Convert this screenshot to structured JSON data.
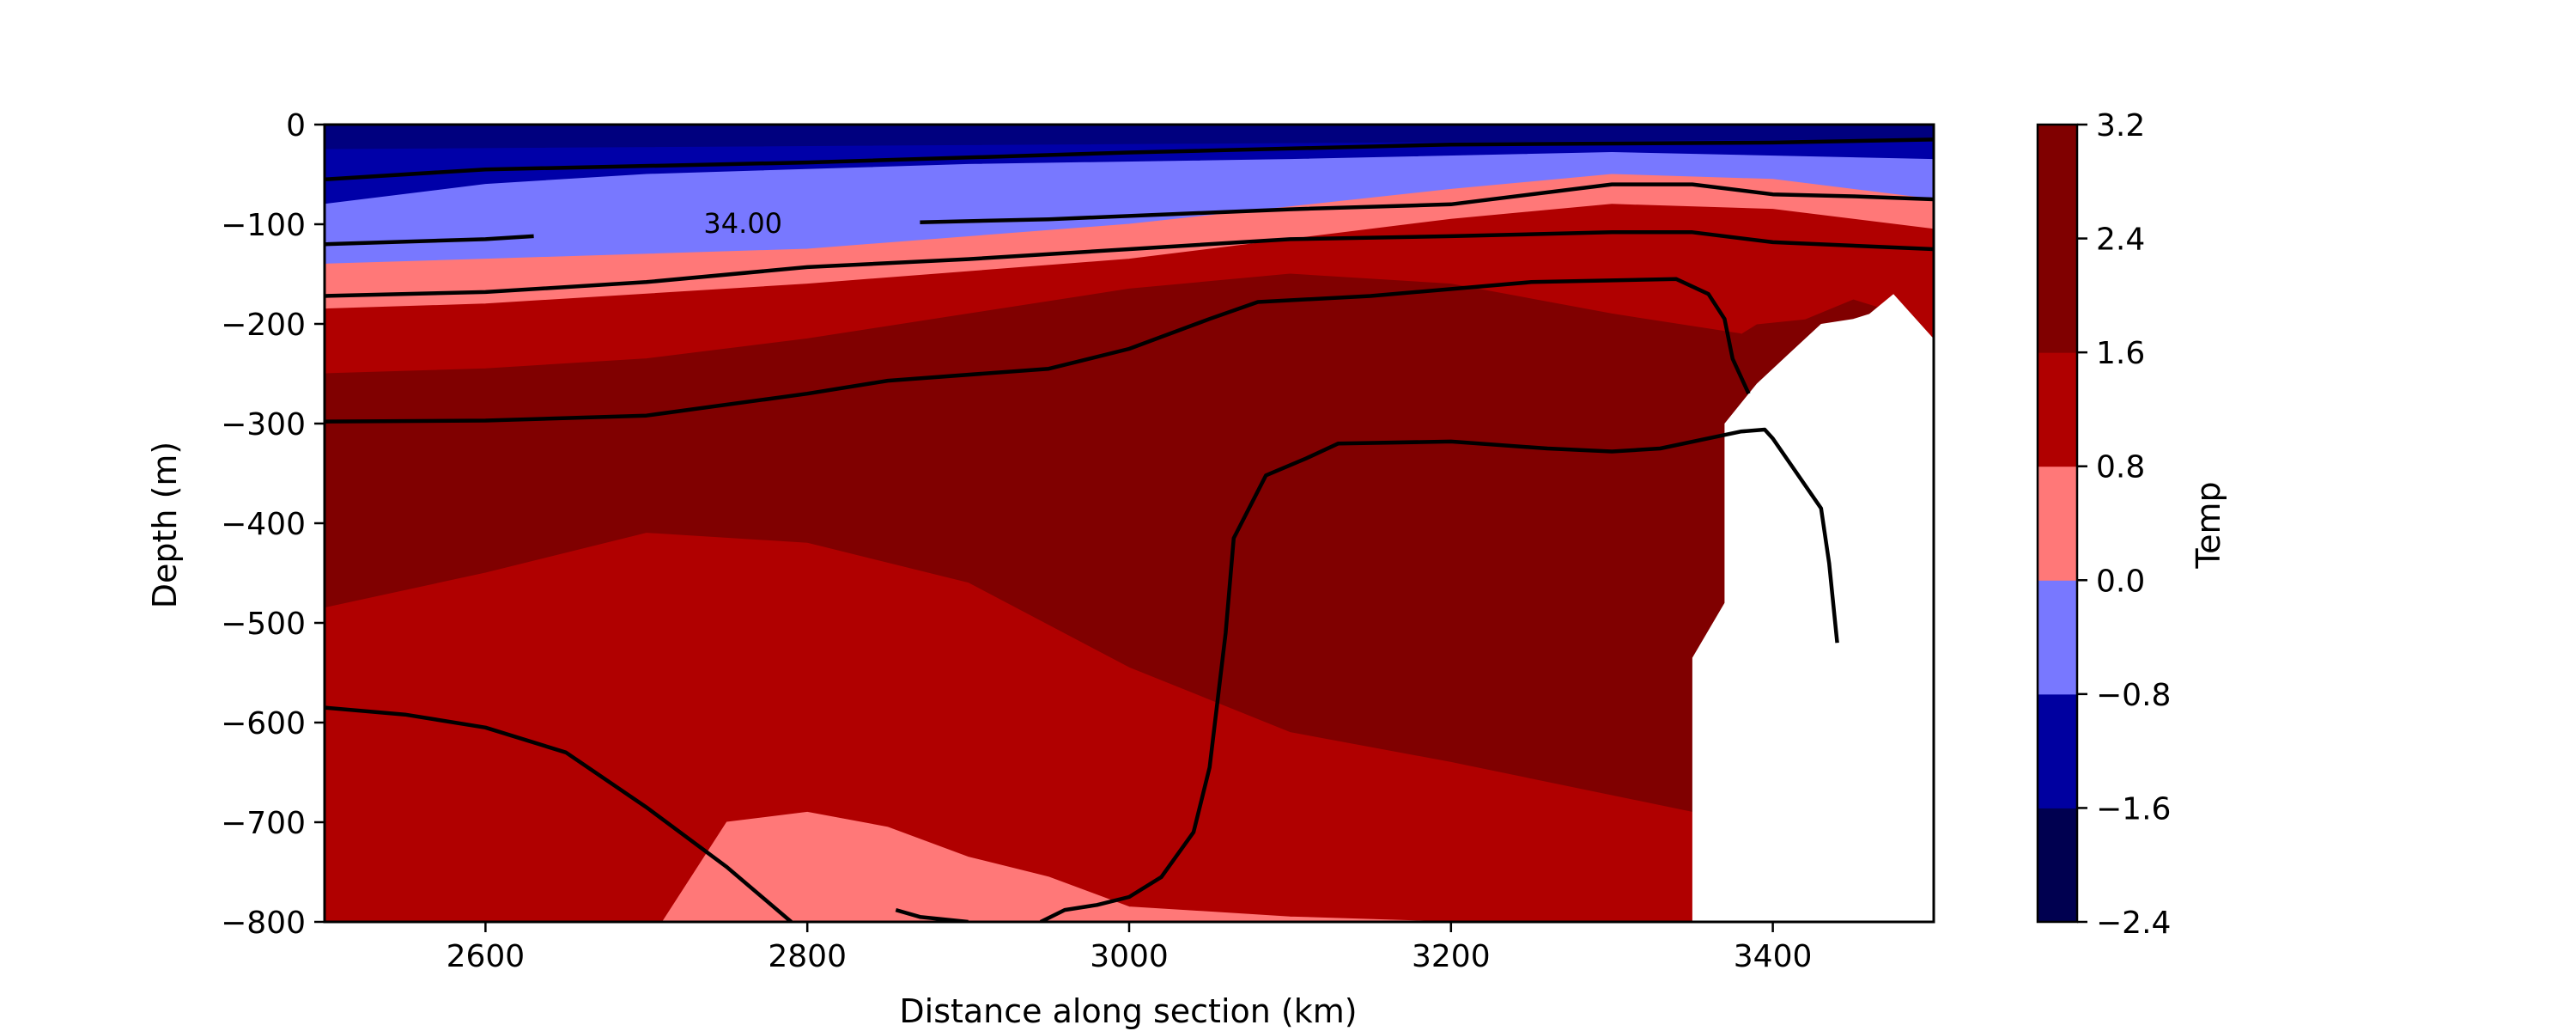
{
  "chart_data": {
    "type": "filled-contour",
    "xlabel": "Distance along section (km)",
    "ylabel": "Depth (m)",
    "xlim": [
      2500,
      3500
    ],
    "ylim": [
      -800,
      0
    ],
    "x_ticks": [
      2600,
      2800,
      3000,
      3200,
      3400
    ],
    "y_ticks": [
      0,
      -100,
      -200,
      -300,
      -400,
      -500,
      -600,
      -700,
      -800
    ],
    "colorbar": {
      "label": "Temp",
      "levels": [
        -2.4,
        -1.6,
        -0.8,
        0.0,
        0.8,
        1.6,
        2.4,
        3.2
      ],
      "colors": [
        "#000050",
        "#0000a0",
        "#7878ff",
        "#ff7878",
        "#b00000",
        "#800000",
        "#800000"
      ]
    },
    "contour_label": "34.00",
    "colors": {
      "band_lt_-0.8": "#00007f",
      "band_-0.8_0.0": "#0000a8",
      "band_0.0_0.8": "#7878ff",
      "band_0.8_1.6": "#ff7878",
      "band_1.6_2.4": "#b00000",
      "band_gt_2.4": "#800000",
      "contour_line": "#000000",
      "land_mask": "#ffffff"
    },
    "temperature_bands": [
      {
        "name": "surface_dark_blue",
        "color_key": "band_lt_-0.8",
        "points": [
          [
            2500,
            0
          ],
          [
            3500,
            0
          ],
          [
            3500,
            -15
          ],
          [
            2500,
            -25
          ]
        ]
      },
      {
        "name": "blue",
        "color_key": "band_-0.8_0.0",
        "points": [
          [
            2500,
            -25
          ],
          [
            3500,
            -15
          ],
          [
            3500,
            -35
          ],
          [
            3300,
            -28
          ],
          [
            3100,
            -35
          ],
          [
            2900,
            -40
          ],
          [
            2700,
            -50
          ],
          [
            2600,
            -60
          ],
          [
            2500,
            -80
          ]
        ]
      },
      {
        "name": "light_blue",
        "color_key": "band_0.0_0.8",
        "points": [
          [
            2500,
            -80
          ],
          [
            2600,
            -60
          ],
          [
            2700,
            -50
          ],
          [
            2900,
            -40
          ],
          [
            3100,
            -35
          ],
          [
            3300,
            -28
          ],
          [
            3500,
            -35
          ],
          [
            3500,
            -75
          ],
          [
            3400,
            -55
          ],
          [
            3300,
            -50
          ],
          [
            3200,
            -65
          ],
          [
            3000,
            -100
          ],
          [
            2800,
            -125
          ],
          [
            2600,
            -135
          ],
          [
            2500,
            -140
          ]
        ]
      },
      {
        "name": "pink_upper",
        "color_key": "band_0.8_1.6",
        "points": [
          [
            2500,
            -140
          ],
          [
            2600,
            -135
          ],
          [
            2800,
            -125
          ],
          [
            3000,
            -100
          ],
          [
            3200,
            -65
          ],
          [
            3300,
            -50
          ],
          [
            3400,
            -55
          ],
          [
            3500,
            -75
          ],
          [
            3500,
            -105
          ],
          [
            3400,
            -85
          ],
          [
            3300,
            -80
          ],
          [
            3200,
            -95
          ],
          [
            3000,
            -135
          ],
          [
            2800,
            -160
          ],
          [
            2600,
            -180
          ],
          [
            2500,
            -185
          ]
        ]
      },
      {
        "name": "red_upper",
        "color_key": "band_1.6_2.4",
        "points": [
          [
            2500,
            -185
          ],
          [
            2600,
            -180
          ],
          [
            2800,
            -160
          ],
          [
            3000,
            -135
          ],
          [
            3200,
            -95
          ],
          [
            3300,
            -80
          ],
          [
            3400,
            -85
          ],
          [
            3500,
            -105
          ],
          [
            3500,
            -215
          ],
          [
            3480,
            -190
          ],
          [
            3450,
            -175
          ],
          [
            3420,
            -195
          ],
          [
            3390,
            -200
          ],
          [
            3380,
            -210
          ],
          [
            3300,
            -190
          ],
          [
            3200,
            -160
          ],
          [
            3100,
            -150
          ],
          [
            3000,
            -165
          ],
          [
            2900,
            -190
          ],
          [
            2800,
            -215
          ],
          [
            2700,
            -235
          ],
          [
            2600,
            -245
          ],
          [
            2500,
            -250
          ]
        ]
      },
      {
        "name": "dark_red",
        "color_key": "band_gt_2.4",
        "points": [
          [
            2500,
            -250
          ],
          [
            2600,
            -245
          ],
          [
            2700,
            -235
          ],
          [
            2800,
            -215
          ],
          [
            2900,
            -190
          ],
          [
            3000,
            -165
          ],
          [
            3100,
            -150
          ],
          [
            3200,
            -160
          ],
          [
            3300,
            -190
          ],
          [
            3380,
            -210
          ],
          [
            3390,
            -260
          ],
          [
            3370,
            -300
          ],
          [
            3370,
            -480
          ],
          [
            3350,
            -535
          ],
          [
            3350,
            -690
          ],
          [
            3200,
            -640
          ],
          [
            3100,
            -610
          ],
          [
            3000,
            -545
          ],
          [
            2900,
            -460
          ],
          [
            2800,
            -420
          ],
          [
            2700,
            -410
          ],
          [
            2600,
            -450
          ],
          [
            2500,
            -485
          ]
        ]
      },
      {
        "name": "red_lower",
        "color_key": "band_1.6_2.4",
        "points": [
          [
            2500,
            -485
          ],
          [
            2600,
            -450
          ],
          [
            2700,
            -410
          ],
          [
            2800,
            -420
          ],
          [
            2900,
            -460
          ],
          [
            3000,
            -545
          ],
          [
            3100,
            -610
          ],
          [
            3200,
            -640
          ],
          [
            3350,
            -690
          ],
          [
            3350,
            -800
          ],
          [
            3200,
            -800
          ],
          [
            3100,
            -795
          ],
          [
            3000,
            -785
          ],
          [
            2950,
            -755
          ],
          [
            2900,
            -735
          ],
          [
            2850,
            -705
          ],
          [
            2800,
            -690
          ],
          [
            2750,
            -700
          ],
          [
            2710,
            -800
          ],
          [
            2500,
            -800
          ]
        ]
      },
      {
        "name": "pink_lower",
        "color_key": "band_0.8_1.6",
        "points": [
          [
            2710,
            -800
          ],
          [
            2750,
            -700
          ],
          [
            2800,
            -690
          ],
          [
            2850,
            -705
          ],
          [
            2900,
            -735
          ],
          [
            2950,
            -755
          ],
          [
            3000,
            -785
          ],
          [
            3100,
            -795
          ],
          [
            3200,
            -800
          ]
        ]
      }
    ],
    "land_mask": [
      [
        3350,
        -800
      ],
      [
        3350,
        -535
      ],
      [
        3370,
        -480
      ],
      [
        3370,
        -300
      ],
      [
        3390,
        -260
      ],
      [
        3410,
        -230
      ],
      [
        3430,
        -200
      ],
      [
        3450,
        -195
      ],
      [
        3460,
        -190
      ],
      [
        3475,
        -170
      ],
      [
        3500,
        -215
      ],
      [
        3500,
        -800
      ]
    ],
    "contours": [
      [
        [
          2500,
          -55
        ],
        [
          2600,
          -45
        ],
        [
          2800,
          -38
        ],
        [
          3000,
          -28
        ],
        [
          3200,
          -20
        ],
        [
          3400,
          -18
        ],
        [
          3500,
          -15
        ]
      ],
      [
        [
          2500,
          -120
        ],
        [
          2600,
          -115
        ],
        [
          2630,
          -112
        ]
      ],
      [
        [
          2870,
          -98
        ],
        [
          2950,
          -95
        ],
        [
          3100,
          -85
        ],
        [
          3200,
          -80
        ],
        [
          3300,
          -60
        ],
        [
          3350,
          -60
        ],
        [
          3400,
          -70
        ],
        [
          3450,
          -72
        ],
        [
          3500,
          -75
        ]
      ],
      [
        [
          2500,
          -172
        ],
        [
          2600,
          -168
        ],
        [
          2700,
          -158
        ],
        [
          2800,
          -143
        ],
        [
          2900,
          -135
        ],
        [
          3000,
          -125
        ],
        [
          3100,
          -115
        ],
        [
          3200,
          -112
        ],
        [
          3300,
          -108
        ],
        [
          3350,
          -108
        ],
        [
          3400,
          -118
        ],
        [
          3500,
          -125
        ]
      ],
      [
        [
          2500,
          -298
        ],
        [
          2600,
          -297
        ],
        [
          2700,
          -292
        ],
        [
          2800,
          -270
        ],
        [
          2850,
          -257
        ],
        [
          2950,
          -245
        ],
        [
          3000,
          -225
        ],
        [
          3050,
          -195
        ],
        [
          3080,
          -178
        ],
        [
          3150,
          -172
        ],
        [
          3250,
          -158
        ],
        [
          3340,
          -155
        ],
        [
          3360,
          -170
        ],
        [
          3370,
          -195
        ],
        [
          3375,
          -235
        ],
        [
          3385,
          -270
        ]
      ],
      [
        [
          2500,
          -585
        ],
        [
          2550,
          -592
        ],
        [
          2600,
          -605
        ],
        [
          2650,
          -630
        ],
        [
          2700,
          -685
        ],
        [
          2750,
          -745
        ],
        [
          2790,
          -800
        ]
      ],
      [
        [
          2855,
          -788
        ],
        [
          2870,
          -795
        ],
        [
          2900,
          -800
        ]
      ],
      [
        [
          2945,
          -800
        ],
        [
          2960,
          -788
        ],
        [
          2980,
          -783
        ],
        [
          3000,
          -775
        ],
        [
          3020,
          -755
        ],
        [
          3040,
          -710
        ],
        [
          3050,
          -645
        ],
        [
          3060,
          -510
        ],
        [
          3065,
          -415
        ],
        [
          3085,
          -352
        ],
        [
          3110,
          -335
        ],
        [
          3130,
          -320
        ],
        [
          3200,
          -318
        ],
        [
          3260,
          -325
        ],
        [
          3300,
          -328
        ],
        [
          3330,
          -325
        ],
        [
          3380,
          -308
        ],
        [
          3395,
          -306
        ],
        [
          3400,
          -315
        ],
        [
          3430,
          -385
        ],
        [
          3435,
          -440
        ],
        [
          3440,
          -520
        ]
      ]
    ]
  }
}
